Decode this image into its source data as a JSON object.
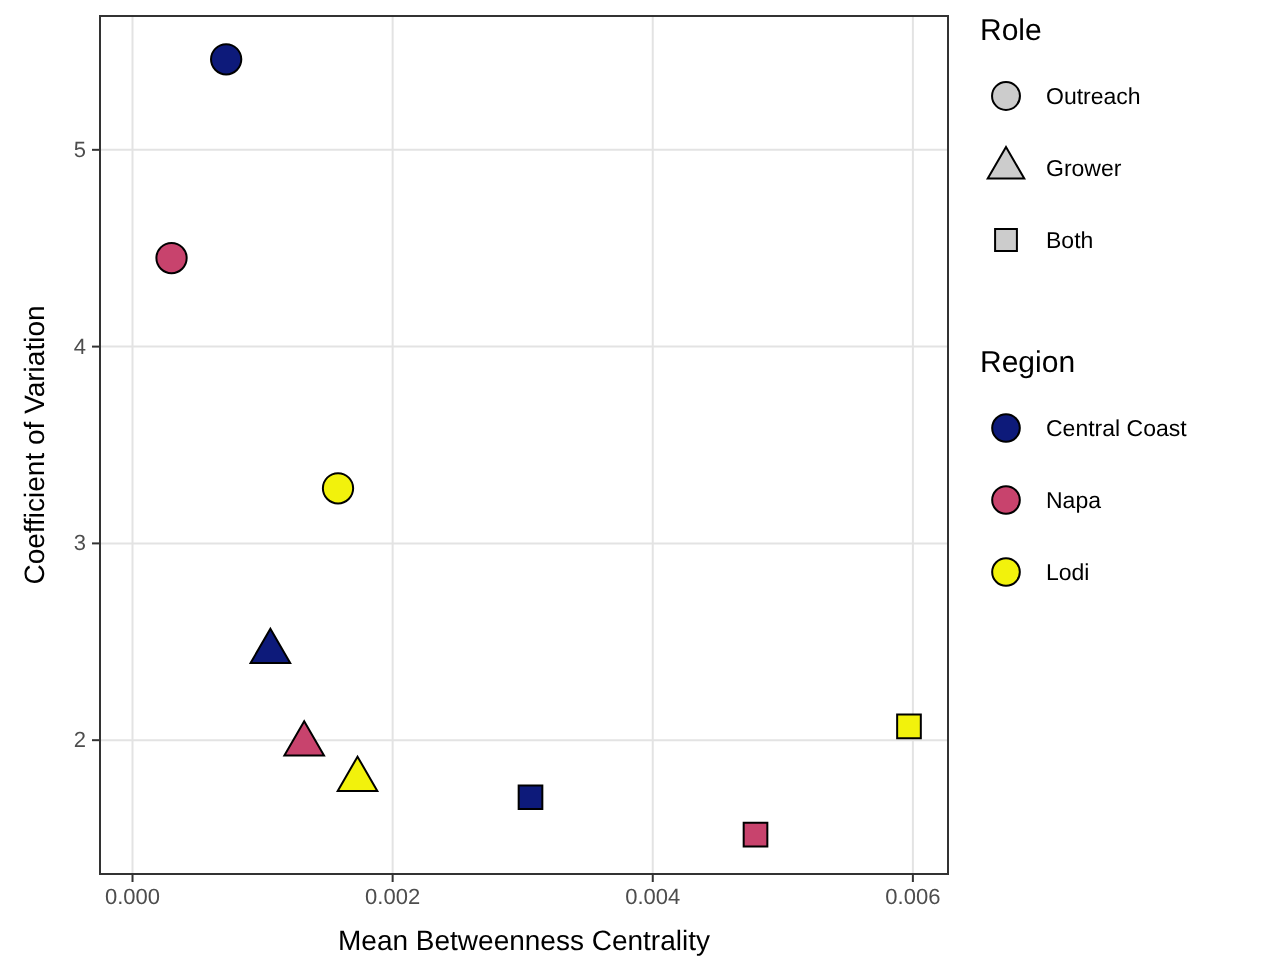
{
  "chart_data": {
    "type": "scatter",
    "xlabel": "Mean Betweenness Centrality",
    "ylabel": "Coefficient of Variation",
    "legend_title": "Region",
    "annotations": [
      "Role",
      "Outreach",
      "Grower",
      "Both"
    ],
    "xlim": [
      -0.00025,
      0.00627
    ],
    "xticks": [
      {
        "value": 0,
        "label": "0.000"
      },
      {
        "value": 0.002,
        "label": "0.002"
      },
      {
        "value": 0.004,
        "label": "0.004"
      },
      {
        "value": 0.006,
        "label": "0.006"
      }
    ],
    "ylim": [
      1.32,
      5.68
    ],
    "yticks": [
      2,
      3,
      4,
      5
    ],
    "grid": true,
    "legend": "right",
    "series": [
      {
        "name": "Central Coast",
        "color": "#0d1a7a",
        "marker": [
          "circle",
          "triangle",
          "square"
        ],
        "x": [
          0.00072,
          0.00106,
          0.00306
        ],
        "values": [
          5.46,
          2.45,
          1.71
        ]
      },
      {
        "name": "Napa",
        "color": "#c8436d",
        "marker": [
          "circle",
          "triangle",
          "square"
        ],
        "x": [
          0.0003,
          0.00132,
          0.00479
        ],
        "values": [
          4.45,
          1.98,
          1.52
        ]
      },
      {
        "name": "Lodi",
        "color": "#f2f20c",
        "marker": [
          "circle",
          "triangle",
          "square"
        ],
        "x": [
          0.00158,
          0.00173,
          0.00597
        ],
        "values": [
          3.28,
          1.8,
          2.07
        ]
      }
    ]
  }
}
